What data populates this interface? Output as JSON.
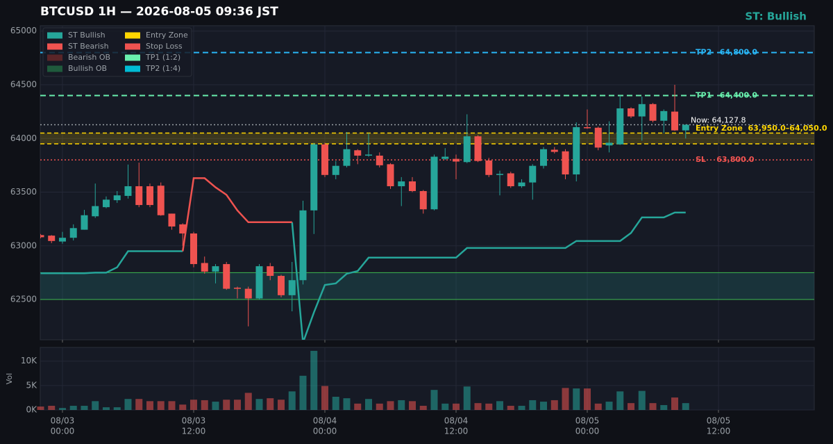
{
  "chart_data": {
    "type": "candlestick",
    "title": "BTCUSD  1H  —  2026-08-05 09:36 JST",
    "status": "ST: Bullish",
    "status_color": "#26a69a",
    "up_color": "#26a69a",
    "down_color": "#ef5350",
    "x": [
      -2,
      -1,
      0,
      1,
      2,
      3,
      4,
      5,
      6,
      7,
      8,
      9,
      10,
      11,
      12,
      13,
      14,
      15,
      16,
      17,
      18,
      19,
      20,
      21,
      22,
      23,
      24,
      25,
      26,
      27,
      28,
      29,
      30,
      31,
      32,
      33,
      34,
      35,
      36,
      37,
      38,
      39,
      40,
      41,
      42,
      43,
      44,
      45,
      46,
      47,
      48,
      49,
      50,
      51,
      52,
      53,
      54,
      55,
      56,
      57
    ],
    "open": [
      63100,
      63095,
      63040,
      63075,
      63150,
      63275,
      63360,
      63425,
      63465,
      63555,
      63555,
      63560,
      63300,
      63200,
      63115,
      62840,
      62760,
      62830,
      62610,
      62600,
      62510,
      62810,
      62720,
      62540,
      62680,
      63330,
      63945,
      63660,
      63745,
      63890,
      63840,
      63840,
      63760,
      63555,
      63600,
      63510,
      63340,
      63810,
      63810,
      63780,
      64020,
      63795,
      63660,
      63675,
      63555,
      63590,
      63745,
      63895,
      63880,
      63665,
      64105,
      64100,
      63935,
      63945,
      64280,
      64205,
      64320,
      64165,
      64250,
      64075
    ],
    "high": [
      63110,
      63100,
      63130,
      63200,
      63335,
      63580,
      63460,
      63510,
      63757,
      63775,
      63580,
      63590,
      63300,
      63210,
      63130,
      62900,
      62830,
      62850,
      62620,
      62620,
      62830,
      62840,
      62730,
      62850,
      63420,
      63960,
      63960,
      63790,
      64060,
      63900,
      64050,
      63870,
      63770,
      63640,
      63640,
      63520,
      63850,
      63910,
      63850,
      64225,
      64030,
      63820,
      63700,
      63690,
      63620,
      63760,
      63920,
      63920,
      63900,
      64150,
      64270,
      64110,
      64160,
      64400,
      64290,
      64390,
      64330,
      64270,
      64500,
      64130
    ],
    "low": [
      63070,
      63025,
      63020,
      63050,
      63150,
      63260,
      63350,
      63400,
      63440,
      63360,
      63360,
      63280,
      63150,
      63000,
      62800,
      62740,
      62650,
      62590,
      62510,
      62250,
      62500,
      62680,
      62520,
      62390,
      62640,
      63110,
      63640,
      63620,
      63730,
      63760,
      63830,
      63730,
      63530,
      63370,
      63500,
      63300,
      63330,
      63800,
      63620,
      63770,
      63780,
      63640,
      63470,
      63540,
      63540,
      63430,
      63720,
      63860,
      63620,
      63600,
      64090,
      63890,
      63870,
      63940,
      64190,
      63980,
      64150,
      64050,
      64070,
      64000
    ],
    "close": [
      63080,
      63045,
      63075,
      63165,
      63285,
      63370,
      63430,
      63470,
      63555,
      63380,
      63380,
      63285,
      63180,
      63115,
      62830,
      62760,
      62810,
      62600,
      62600,
      62510,
      62810,
      62720,
      62540,
      62680,
      63330,
      63945,
      63660,
      63745,
      63900,
      63840,
      63850,
      63750,
      63555,
      63600,
      63510,
      63340,
      63830,
      63830,
      63785,
      64020,
      63790,
      63660,
      63670,
      63555,
      63590,
      63745,
      63900,
      63875,
      63665,
      64105,
      64095,
      63915,
      63960,
      64280,
      64205,
      64320,
      64165,
      64255,
      64075,
      64127.8
    ],
    "volume": [
      700,
      850,
      400,
      850,
      850,
      1800,
      550,
      550,
      2250,
      2250,
      1800,
      1800,
      1800,
      1100,
      2100,
      2000,
      1700,
      2100,
      2100,
      3500,
      2250,
      2400,
      2100,
      3800,
      7000,
      12100,
      4900,
      2700,
      2400,
      1300,
      2250,
      1300,
      1800,
      2000,
      1800,
      850,
      4100,
      1300,
      1300,
      4800,
      1400,
      1300,
      1800,
      850,
      850,
      2000,
      1700,
      2000,
      4500,
      4400,
      4400,
      1300,
      1700,
      3800,
      1400,
      3900,
      1400,
      1000,
      2550,
      1400
    ],
    "series": [
      {
        "name": "ST Bullish",
        "color": "#26a69a",
        "values": [
          62745,
          62745,
          62745,
          62745,
          62745,
          62750,
          62750,
          62800,
          62950,
          62950,
          62950,
          62950,
          62950,
          62950,
          null,
          null,
          null,
          null,
          null,
          null,
          null,
          null,
          null,
          63220,
          62100,
          62380,
          62635,
          62650,
          62740,
          62765,
          62890,
          62890,
          62890,
          62890,
          62890,
          62890,
          62890,
          62890,
          62890,
          62980,
          62980,
          62980,
          62980,
          62980,
          62980,
          62980,
          62980,
          62980,
          62980,
          63045,
          63045,
          63045,
          63045,
          63045,
          63120,
          63265,
          63265,
          63265,
          63310,
          63310
        ]
      },
      {
        "name": "ST Bearish",
        "color": "#ef5350",
        "values": [
          null,
          null,
          null,
          null,
          null,
          null,
          null,
          null,
          null,
          null,
          null,
          null,
          null,
          62950,
          63630,
          63630,
          63545,
          63475,
          63330,
          63220,
          63220,
          63220,
          63220,
          63220,
          null,
          null,
          null,
          null,
          null,
          null,
          null,
          null,
          null,
          null,
          null,
          null,
          null,
          null,
          null,
          null,
          null,
          null,
          null,
          null,
          null,
          null,
          null,
          null,
          null,
          null,
          null,
          null,
          null,
          null,
          null,
          null,
          null,
          null,
          null,
          null
        ]
      }
    ],
    "legend": [
      {
        "name": "ST Bullish",
        "color": "#26a69a"
      },
      {
        "name": "ST Bearish",
        "color": "#ef5350"
      },
      {
        "name": "Bearish OB",
        "color": "#5a2528"
      },
      {
        "name": "Bullish OB",
        "color": "#1f5a3c"
      },
      {
        "name": "Entry Zone",
        "color": "#ffd600"
      },
      {
        "name": "Stop Loss",
        "color": "#ef5350"
      },
      {
        "name": "TP1 (1:2)",
        "color": "#69f0ae"
      },
      {
        "name": "TP2 (1:4)",
        "color": "#00bcd4"
      }
    ],
    "bullish_ob": {
      "low": 62500,
      "high": 62750,
      "color": "#26a69a"
    },
    "entry_zone": {
      "low": 63950,
      "high": 64050,
      "color": "#ffd600",
      "label": "Entry Zone  63,950.0–64,050.0"
    },
    "levels": [
      {
        "value": 64800,
        "label": "TP2   64,800.0",
        "color": "#29b6f6",
        "style": "dashed"
      },
      {
        "value": 64400,
        "label": "TP1   64,400.0",
        "color": "#69f0ae",
        "style": "dashed"
      },
      {
        "value": 63800,
        "label": "SL    63,800.0",
        "color": "#ef5350",
        "style": "dotted"
      },
      {
        "value": 64127.8,
        "label": "Now: 64,127.8",
        "color": "#9aa0a6",
        "style": "dotted"
      }
    ],
    "xlim": [
      -2.03,
      68.76
    ],
    "xticks": [
      {
        "value": 0,
        "label": [
          "08/03",
          "00:00"
        ]
      },
      {
        "value": 12,
        "label": [
          "08/03",
          "12:00"
        ]
      },
      {
        "value": 24,
        "label": [
          "08/04",
          "00:00"
        ]
      },
      {
        "value": 36,
        "label": [
          "08/04",
          "12:00"
        ]
      },
      {
        "value": 48,
        "label": [
          "08/05",
          "00:00"
        ]
      },
      {
        "value": 60,
        "label": [
          "08/05",
          "12:00"
        ]
      }
    ],
    "ylim": [
      62125,
      65050
    ],
    "yticks": [
      62500,
      63000,
      63500,
      64000,
      64500,
      65000
    ],
    "volume_label": "Vol",
    "vol_ylim": [
      0,
      12800
    ],
    "vol_yticks": [
      {
        "value": 0,
        "label": "0K"
      },
      {
        "value": 5000,
        "label": "5K"
      },
      {
        "value": 10000,
        "label": "10K"
      }
    ],
    "grid": true
  }
}
